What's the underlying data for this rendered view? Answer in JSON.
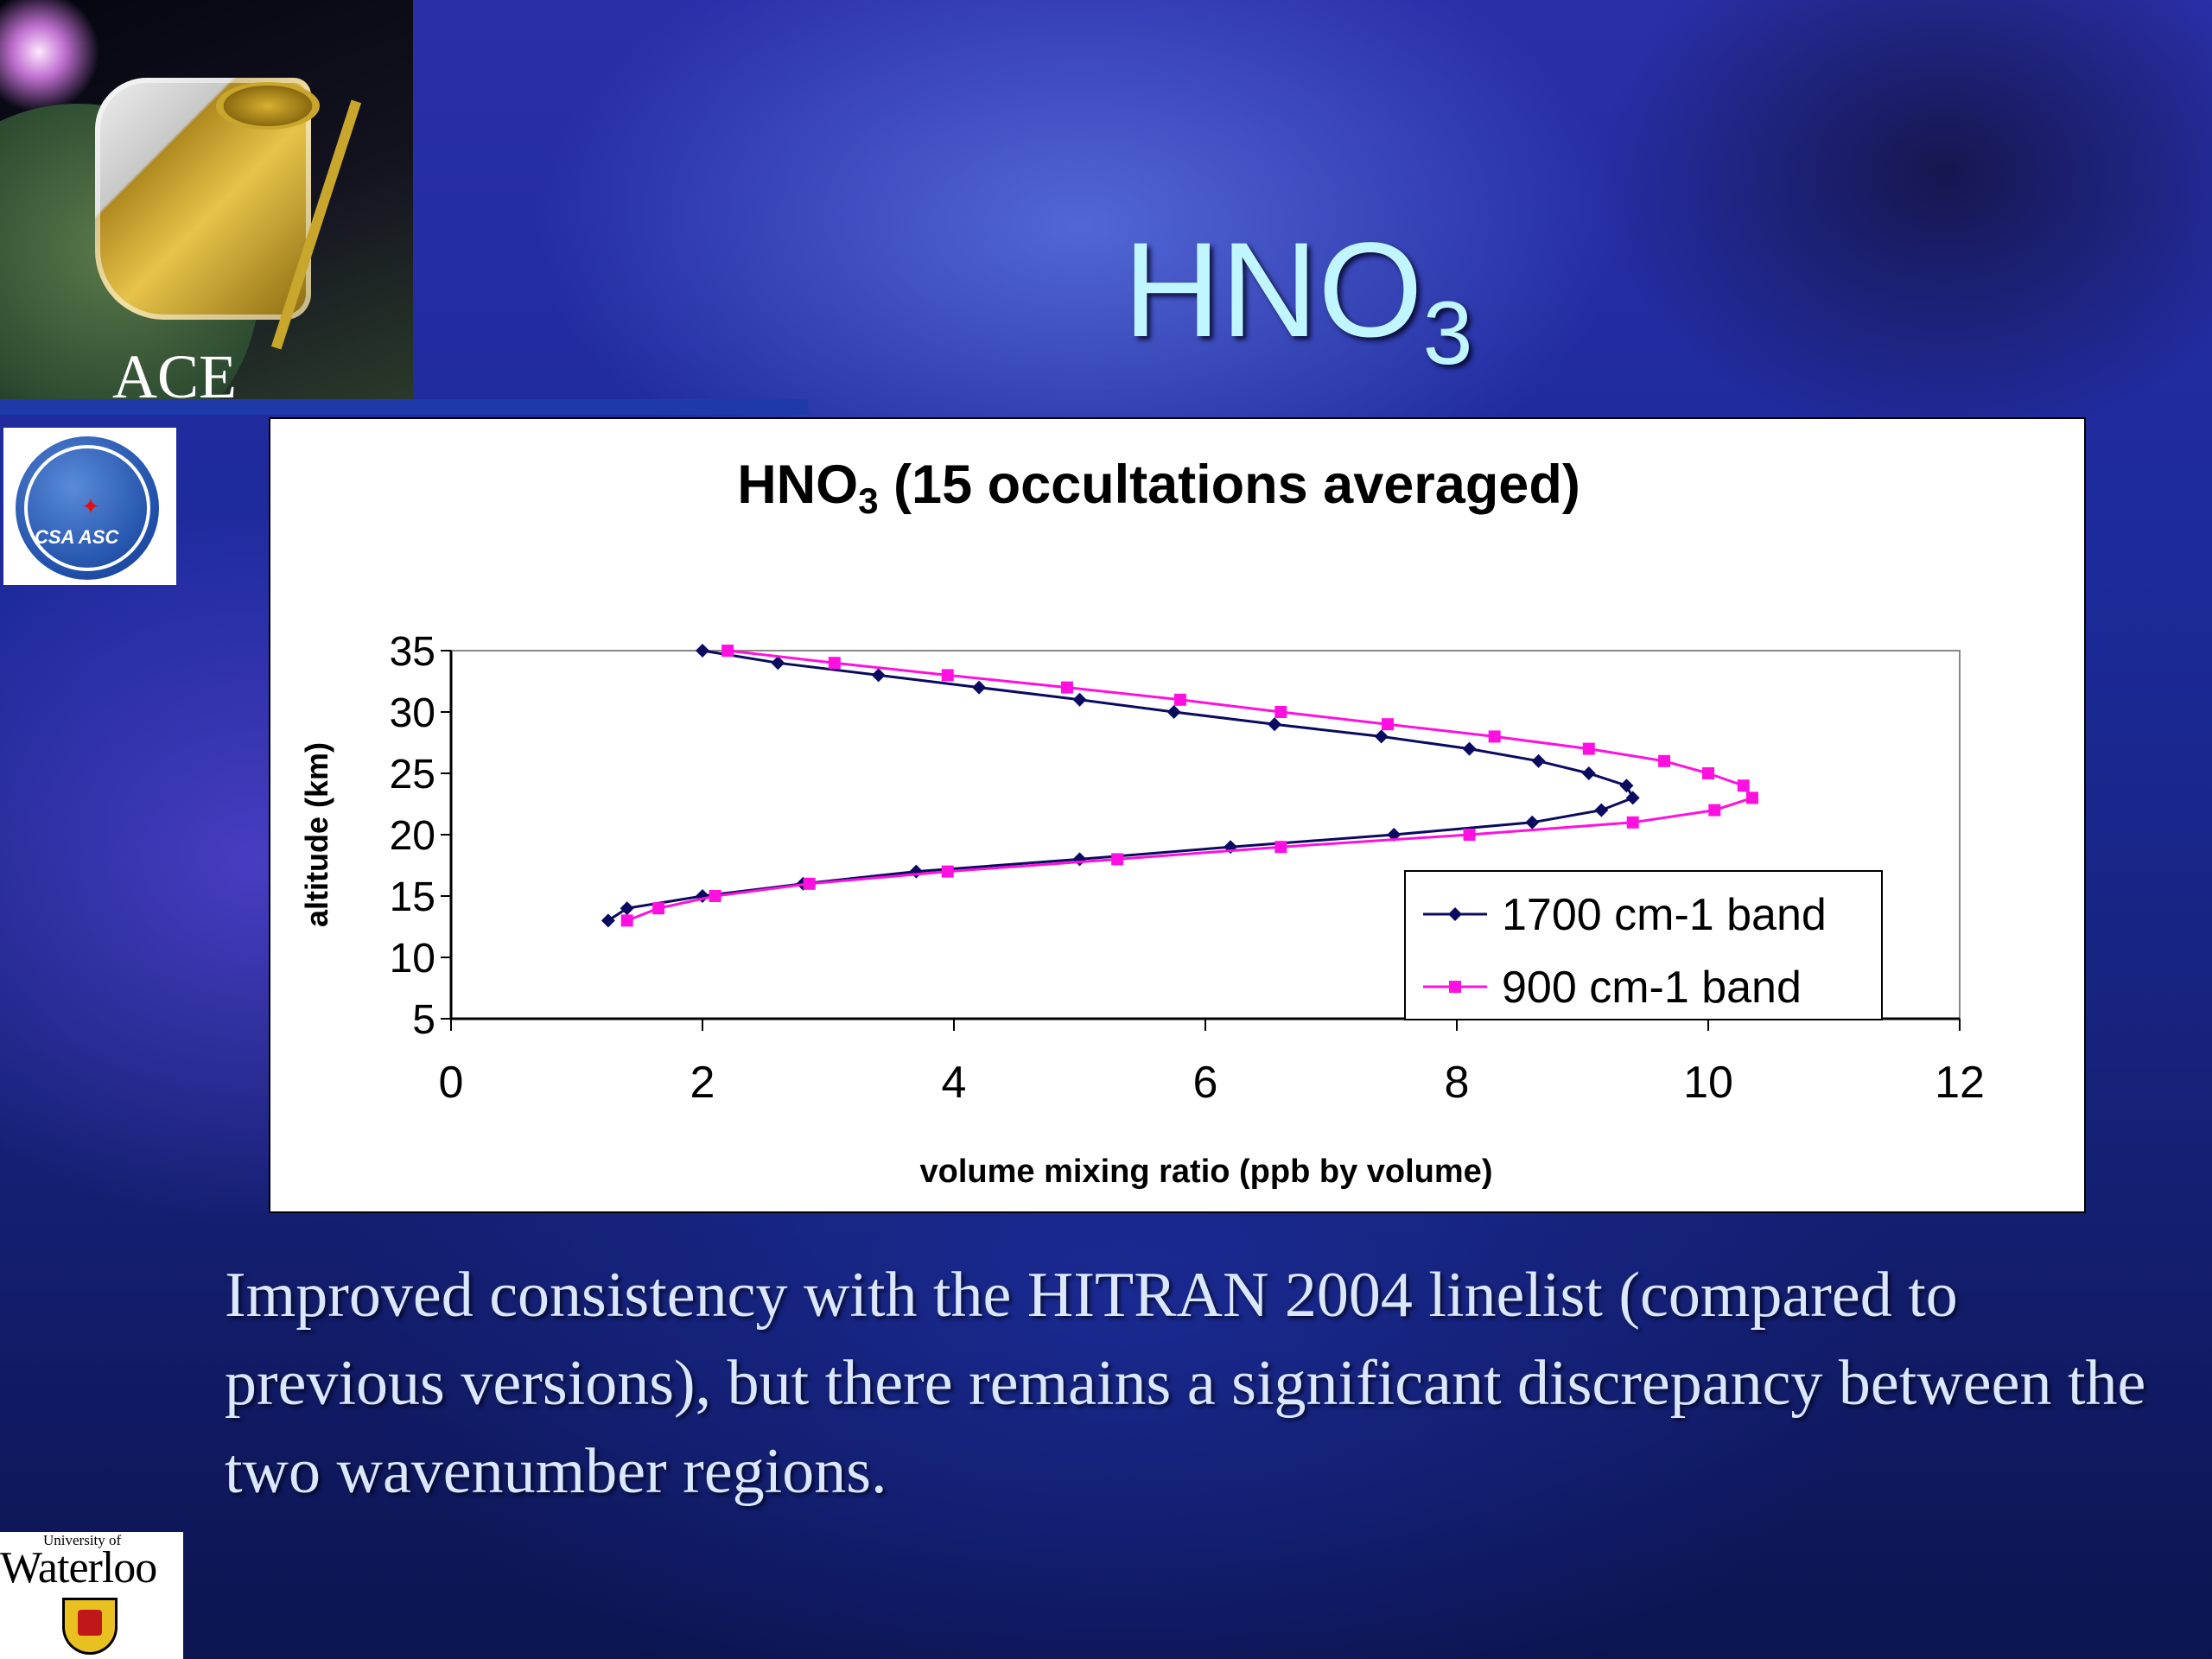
{
  "slide": {
    "title_main": "HNO",
    "title_sub": "3",
    "logo_ace_label": "ACE",
    "logo_csa_text": "CSA ASC",
    "logo_waterloo_small": "University of",
    "logo_waterloo_big": "Waterloo",
    "caption": "Improved consistency with the HITRAN 2004 linelist (compared to previous versions), but there remains a significant discrepancy between the two wavenumber regions."
  },
  "chart_data": {
    "type": "line",
    "title_main": "HNO",
    "title_sub": "3",
    "title_rest": " (15 occultations averaged)",
    "xlabel": "volume mixing ratio (ppb by volume)",
    "ylabel": "altitude (km)",
    "xlim": [
      0,
      12
    ],
    "ylim": [
      5,
      35
    ],
    "xticks": [
      0,
      2,
      4,
      6,
      8,
      10,
      12
    ],
    "yticks": [
      5,
      10,
      15,
      20,
      25,
      30,
      35
    ],
    "legend_position": "bottom-right",
    "series": [
      {
        "name": "1700 cm-1 band",
        "color": "#0a0a60",
        "marker": "diamond",
        "points": [
          [
            2.0,
            35
          ],
          [
            2.6,
            34
          ],
          [
            3.4,
            33
          ],
          [
            4.2,
            32
          ],
          [
            5.0,
            31
          ],
          [
            5.75,
            30
          ],
          [
            6.55,
            29
          ],
          [
            7.4,
            28
          ],
          [
            8.1,
            27
          ],
          [
            8.65,
            26
          ],
          [
            9.05,
            25
          ],
          [
            9.35,
            24
          ],
          [
            9.4,
            23
          ],
          [
            9.15,
            22
          ],
          [
            8.6,
            21
          ],
          [
            7.5,
            20
          ],
          [
            6.2,
            19
          ],
          [
            5.0,
            18
          ],
          [
            3.7,
            17
          ],
          [
            2.8,
            16
          ],
          [
            2.0,
            15
          ],
          [
            1.4,
            14
          ],
          [
            1.25,
            13
          ]
        ]
      },
      {
        "name": "900 cm-1 band",
        "color": "#ff10e0",
        "marker": "square",
        "points": [
          [
            2.2,
            35
          ],
          [
            3.05,
            34
          ],
          [
            3.95,
            33
          ],
          [
            4.9,
            32
          ],
          [
            5.8,
            31
          ],
          [
            6.6,
            30
          ],
          [
            7.45,
            29
          ],
          [
            8.3,
            28
          ],
          [
            9.05,
            27
          ],
          [
            9.65,
            26
          ],
          [
            10.0,
            25
          ],
          [
            10.28,
            24
          ],
          [
            10.35,
            23
          ],
          [
            10.05,
            22
          ],
          [
            9.4,
            21
          ],
          [
            8.1,
            20
          ],
          [
            6.6,
            19
          ],
          [
            5.3,
            18
          ],
          [
            3.95,
            17
          ],
          [
            2.85,
            16
          ],
          [
            2.1,
            15
          ],
          [
            1.65,
            14
          ],
          [
            1.4,
            13
          ]
        ]
      }
    ]
  }
}
